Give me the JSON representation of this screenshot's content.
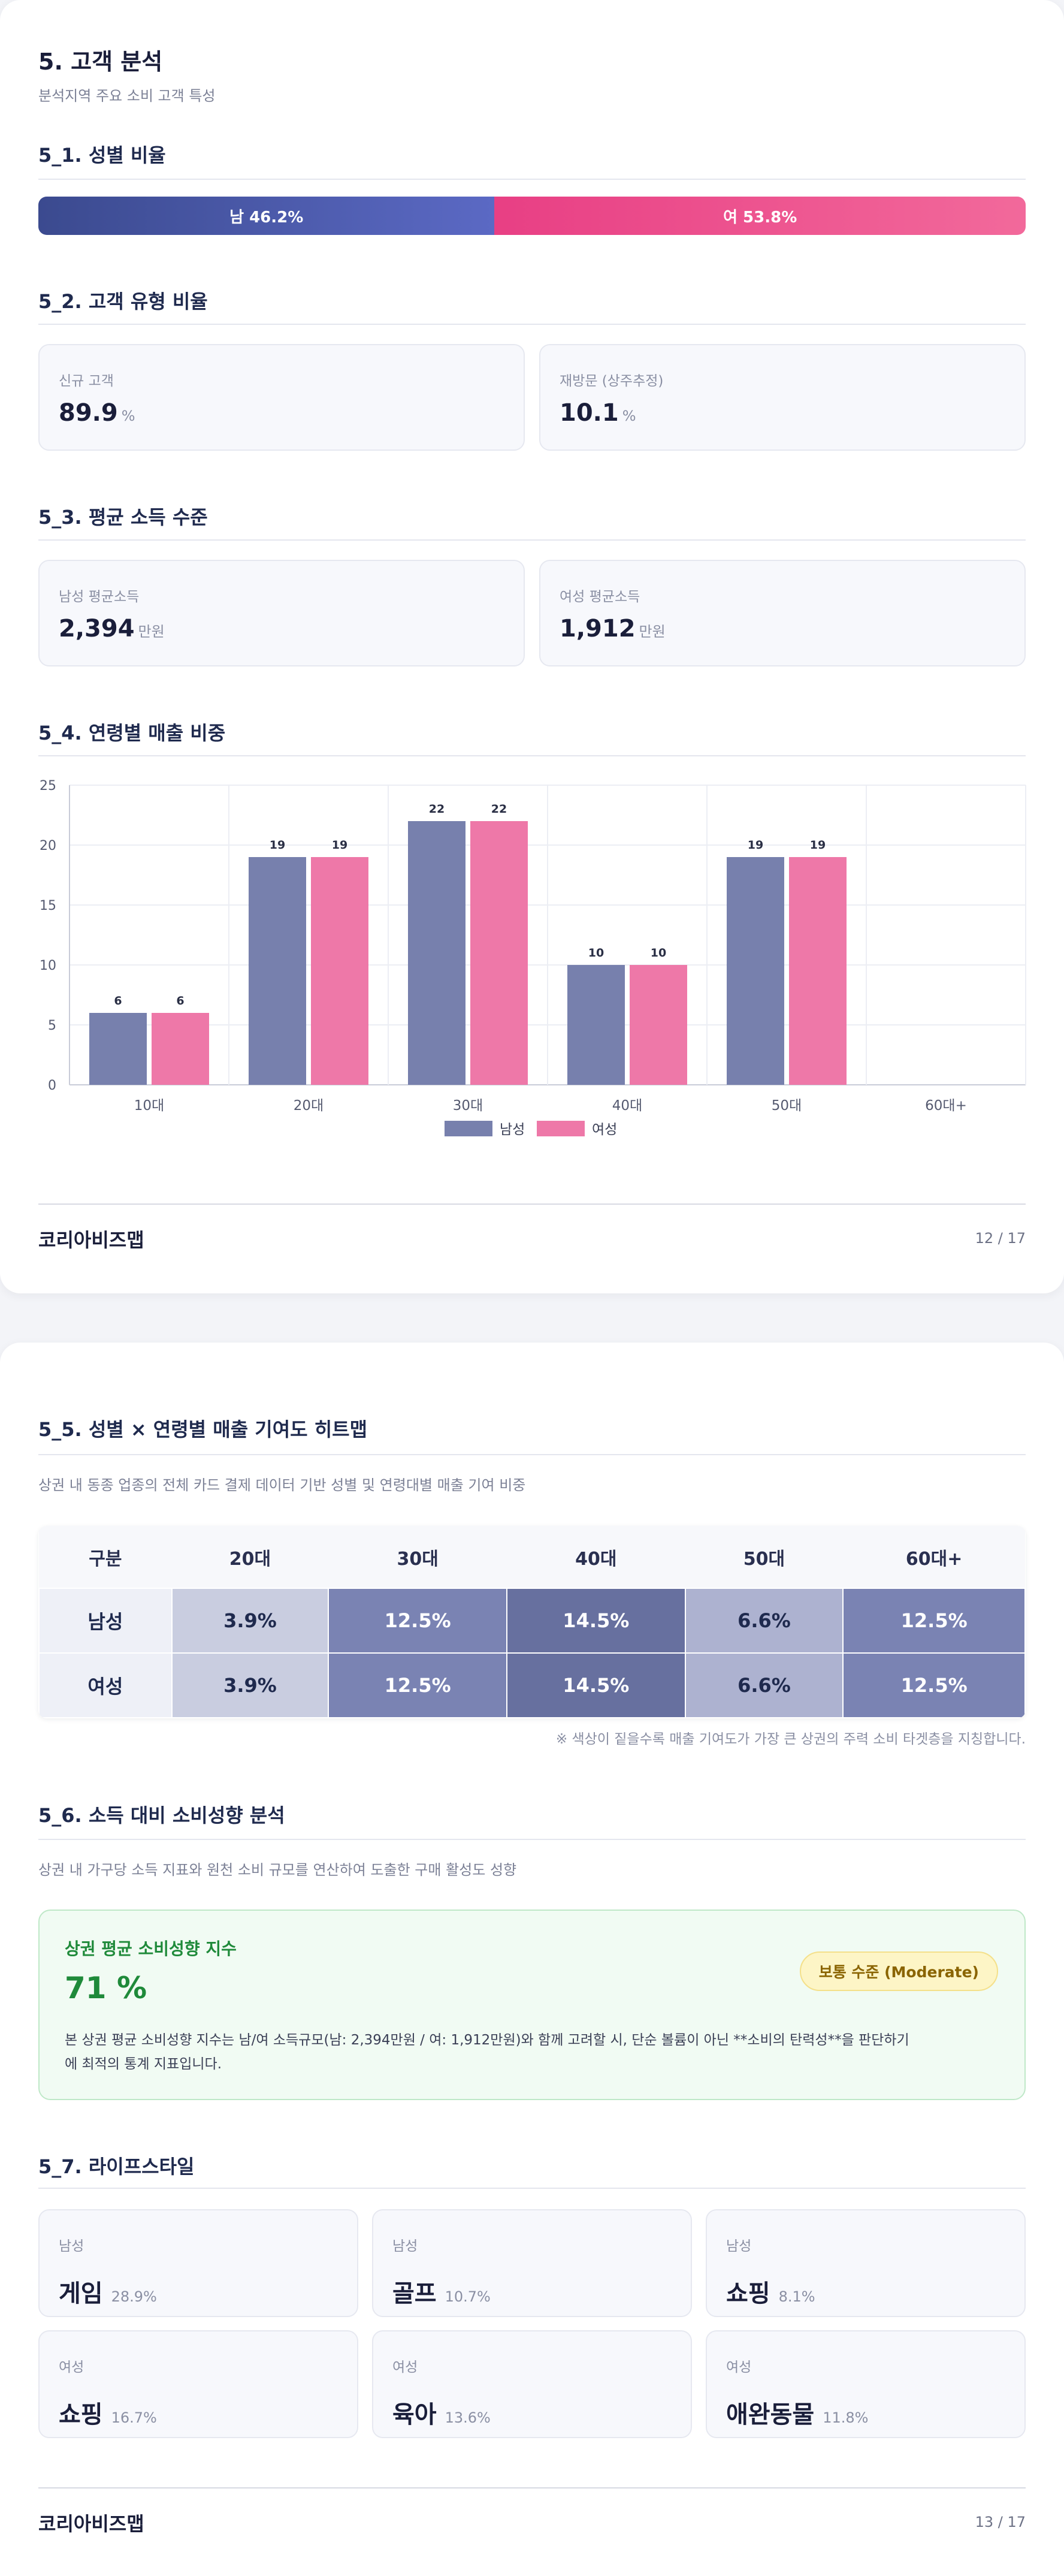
{
  "page1": {
    "title": "5. 고객 분석",
    "subtitle": "분석지역 주요 소비 고객 특성",
    "gender": {
      "heading": "5_1. 성별 비율",
      "male_label": "남 46.2%",
      "female_label": "여 53.8%",
      "male_ratio": 46.2,
      "female_ratio": 53.8
    },
    "customer_type": {
      "heading": "5_2. 고객 유형 비율",
      "cards": [
        {
          "label": "신규 고객",
          "value": "89.9",
          "unit": "%"
        },
        {
          "label": "재방문 (상주추정)",
          "value": "10.1",
          "unit": "%"
        }
      ]
    },
    "income": {
      "heading": "5_3. 평균 소득 수준",
      "cards": [
        {
          "label": "남성 평균소득",
          "value": "2,394",
          "unit": "만원"
        },
        {
          "label": "여성 평균소득",
          "value": "1,912",
          "unit": "만원"
        }
      ]
    },
    "age_sales": {
      "heading": "5_4. 연령별 매출 비중"
    },
    "footer": {
      "brand": "코리아비즈맵",
      "page": "12 / 17"
    }
  },
  "chart_data": {
    "type": "bar",
    "categories": [
      "10대",
      "20대",
      "30대",
      "40대",
      "50대",
      "60대+"
    ],
    "series": [
      {
        "name": "남성",
        "values": [
          6,
          19,
          22,
          10,
          19,
          0
        ],
        "color": "#7780ad"
      },
      {
        "name": "여성",
        "values": [
          6,
          19,
          22,
          10,
          19,
          0
        ],
        "color": "#ee78a8"
      }
    ],
    "data_labels": [
      [
        "6",
        "19",
        "22",
        "10",
        "19",
        ""
      ],
      [
        "6",
        "19",
        "22",
        "10",
        "19",
        ""
      ]
    ],
    "y_ticks": [
      "0",
      "5",
      "10",
      "15",
      "20",
      "25"
    ],
    "ylim": [
      0,
      25
    ],
    "grid": true,
    "legend": "bottom-center"
  },
  "page2": {
    "heatmap": {
      "heading": "5_5. 성별 × 연령별 매출 기여도 히트맵",
      "description": "상권 내 동종 업종의 전체 카드 결제 데이터 기반 성별 및 연령대별 매출 기여 비중",
      "columns": [
        "구분",
        "20대",
        "30대",
        "40대",
        "50대",
        "60대+"
      ],
      "rows": [
        {
          "label": "남성",
          "cells": [
            "3.9%",
            "12.5%",
            "14.5%",
            "6.6%",
            "12.5%"
          ]
        },
        {
          "label": "여성",
          "cells": [
            "3.9%",
            "12.5%",
            "14.5%",
            "6.6%",
            "12.5%"
          ]
        }
      ],
      "cell_colors": [
        "#c9cde0",
        "#7a83b3",
        "#67709f",
        "#adb2d0",
        "#7a83b3"
      ],
      "note": "※ 색상이 짙을수록 매출 기여도가 가장 큰 상권의 주력 소비 타겟층을 지칭합니다."
    },
    "propensity": {
      "heading": "5_6. 소득 대비 소비성향 분석",
      "description": "상권 내 가구당 소득 지표와 원천 소비 규모를 연산하여 도출한 구매 활성도 성향",
      "card_title": "상권 평균 소비성향 지수",
      "value": "71 %",
      "badge": "보통 수준 (Moderate)",
      "body_line1": "본 상권 평균 소비성향 지수는 남/여 소득규모(남: 2,394만원 / 여: 1,912만원)와 함께 고려할 시, 단순 볼륨이 아닌 **소비의 탄력성**을 판단하기",
      "body_line2": "에 최적의 통계 지표입니다."
    },
    "lifestyle": {
      "heading": "5_7. 라이프스타일",
      "items": [
        {
          "gender": "남성",
          "category": "게임",
          "pct": "28.9%"
        },
        {
          "gender": "남성",
          "category": "골프",
          "pct": "10.7%"
        },
        {
          "gender": "남성",
          "category": "쇼핑",
          "pct": "8.1%"
        },
        {
          "gender": "여성",
          "category": "쇼핑",
          "pct": "16.7%"
        },
        {
          "gender": "여성",
          "category": "육아",
          "pct": "13.6%"
        },
        {
          "gender": "여성",
          "category": "애완동물",
          "pct": "11.8%"
        }
      ]
    },
    "footer": {
      "brand": "코리아비즈맵",
      "page": "13 / 17"
    }
  },
  "colors": {
    "male": "#4a58a8",
    "female": "#ec4b8c",
    "heading": "#1f2a4e",
    "propensity_green": "#1f8a3a",
    "badge": "#8a6400"
  }
}
